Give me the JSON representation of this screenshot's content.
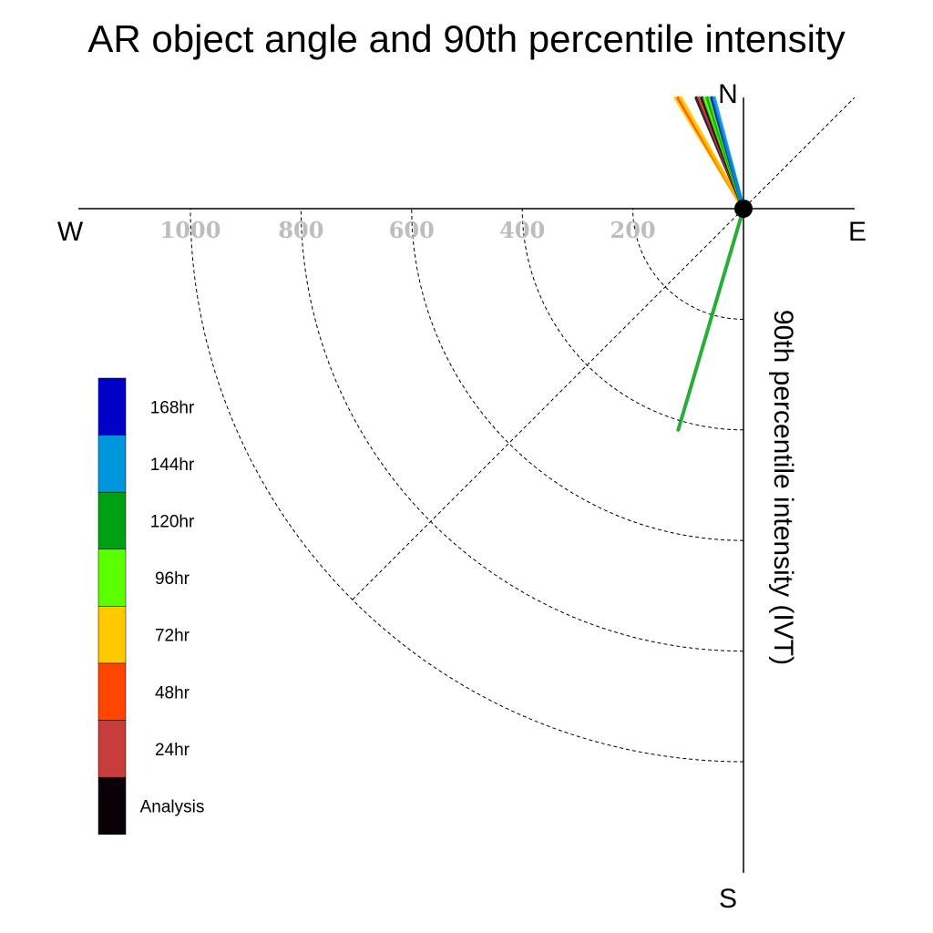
{
  "chart_data": {
    "type": "polar-vector",
    "title": "AR object angle and 90th percentile intensity",
    "radial_label": "90th percentile intensity (IVT)",
    "compass": {
      "north": "N",
      "south": "S",
      "east": "E",
      "west": "W"
    },
    "radial_ticks": [
      "200",
      "400",
      "600",
      "800",
      "1000"
    ],
    "radial_tick_values": [
      200,
      400,
      600,
      800,
      1000
    ],
    "rmax": 1000,
    "grid": true,
    "legend": {
      "placement": "left",
      "entries": [
        {
          "label": "168hr",
          "color": "#0000c8"
        },
        {
          "label": "144hr",
          "color": "#0096dc"
        },
        {
          "label": "120hr",
          "color": "#00a014"
        },
        {
          "label": "96hr",
          "color": "#5aff00"
        },
        {
          "label": "72hr",
          "color": "#ffc800"
        },
        {
          "label": "48hr",
          "color": "#ff4600"
        },
        {
          "label": "24hr",
          "color": "#c83c3c"
        },
        {
          "label": "Analysis",
          "color": "#0a0008"
        }
      ]
    },
    "vectors": [
      {
        "lead": "72hr",
        "color": "#ffc800",
        "dx": -123,
        "dy": 200
      },
      {
        "lead": "48hr",
        "color": "#ff4600",
        "dx": -118,
        "dy": 200
      },
      {
        "lead": "72hr",
        "color": "#ffc800",
        "dx": -113,
        "dy": 200
      },
      {
        "lead": "Analysis",
        "color": "#0a0008",
        "dx": -85,
        "dy": 200
      },
      {
        "lead": "24hr",
        "color": "#c83c3c",
        "dx": -80,
        "dy": 200
      },
      {
        "lead": "Analysis",
        "color": "#0a0008",
        "dx": -75,
        "dy": 200
      },
      {
        "lead": "96hr",
        "color": "#5aff00",
        "dx": -70,
        "dy": 200
      },
      {
        "lead": "120hr",
        "color": "#00a014",
        "dx": -65,
        "dy": 200
      },
      {
        "lead": "96hr",
        "color": "#5aff00",
        "dx": -60,
        "dy": 200
      },
      {
        "lead": "168hr",
        "color": "#0000c8",
        "dx": -57,
        "dy": 200
      },
      {
        "lead": "144hr",
        "color": "#0096dc",
        "dx": -53,
        "dy": 200
      },
      {
        "lead": "120hr",
        "color": "#00a014",
        "dx": -118,
        "dy": -400
      }
    ]
  }
}
